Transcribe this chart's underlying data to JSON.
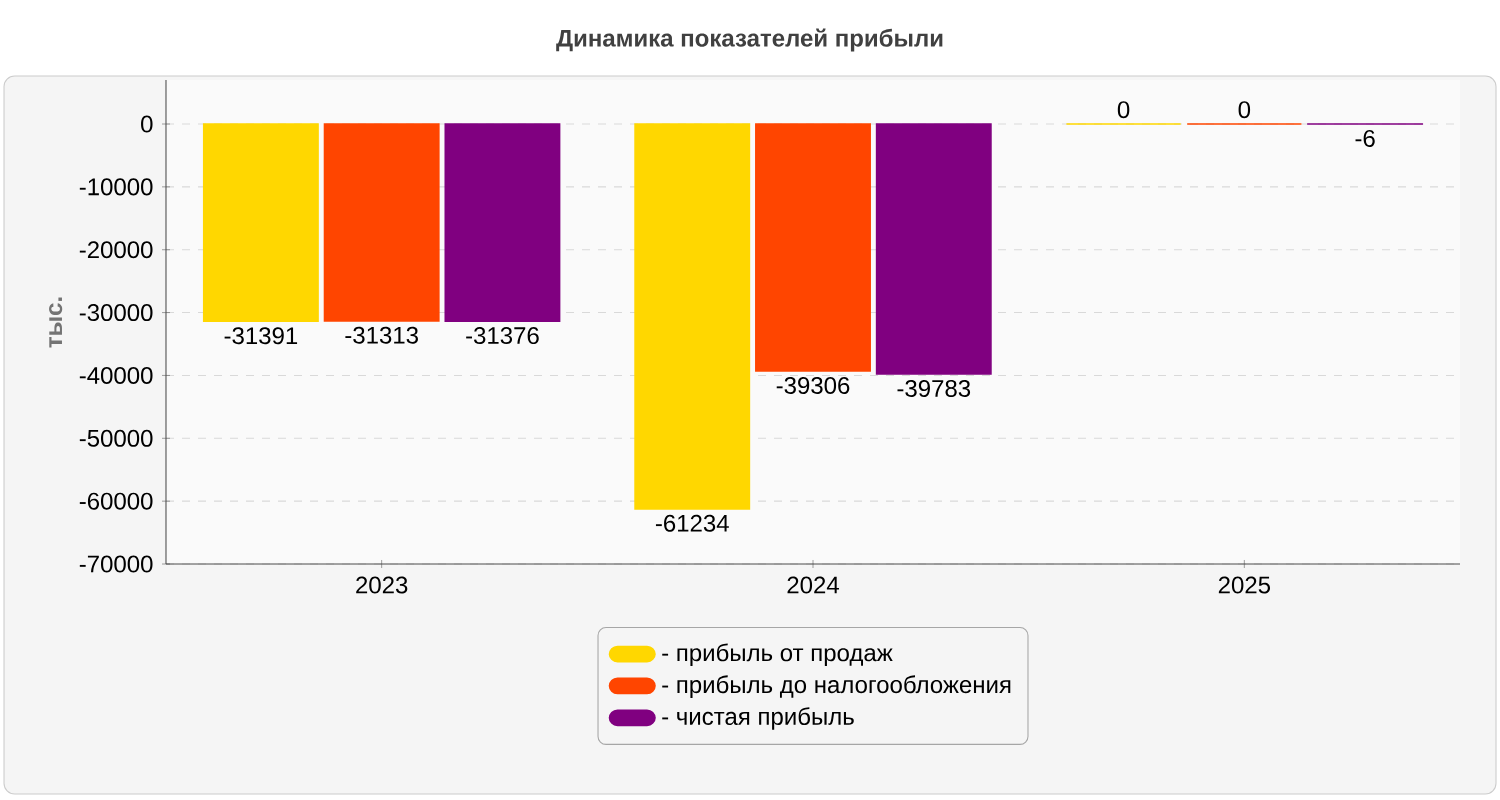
{
  "chart_data": {
    "type": "bar",
    "title": "Динамика показателей прибыли",
    "ylabel": "тыс.",
    "categories": [
      "2023",
      "2024",
      "2025"
    ],
    "series": [
      {
        "name": "- прибыль от продаж",
        "color": "#ffd700",
        "values": [
          -31391,
          -61234,
          0
        ],
        "value_labels": [
          "-31391",
          "-61234",
          "0"
        ]
      },
      {
        "name": "- прибыль до налогообложения",
        "color": "#ff4500",
        "values": [
          -31313,
          -39306,
          0
        ],
        "value_labels": [
          "-31313",
          "-39306",
          "0"
        ]
      },
      {
        "name": "- чистая прибыль",
        "color": "#800080",
        "values": [
          -31376,
          -39783,
          -6
        ],
        "value_labels": [
          "-31376",
          "-39783",
          "-6"
        ]
      }
    ],
    "ylim": [
      -70000,
      7000
    ],
    "yticks": [
      0,
      -10000,
      -20000,
      -30000,
      -40000,
      -50000,
      -60000,
      -70000
    ],
    "grid": "y",
    "legend": "bottom"
  }
}
